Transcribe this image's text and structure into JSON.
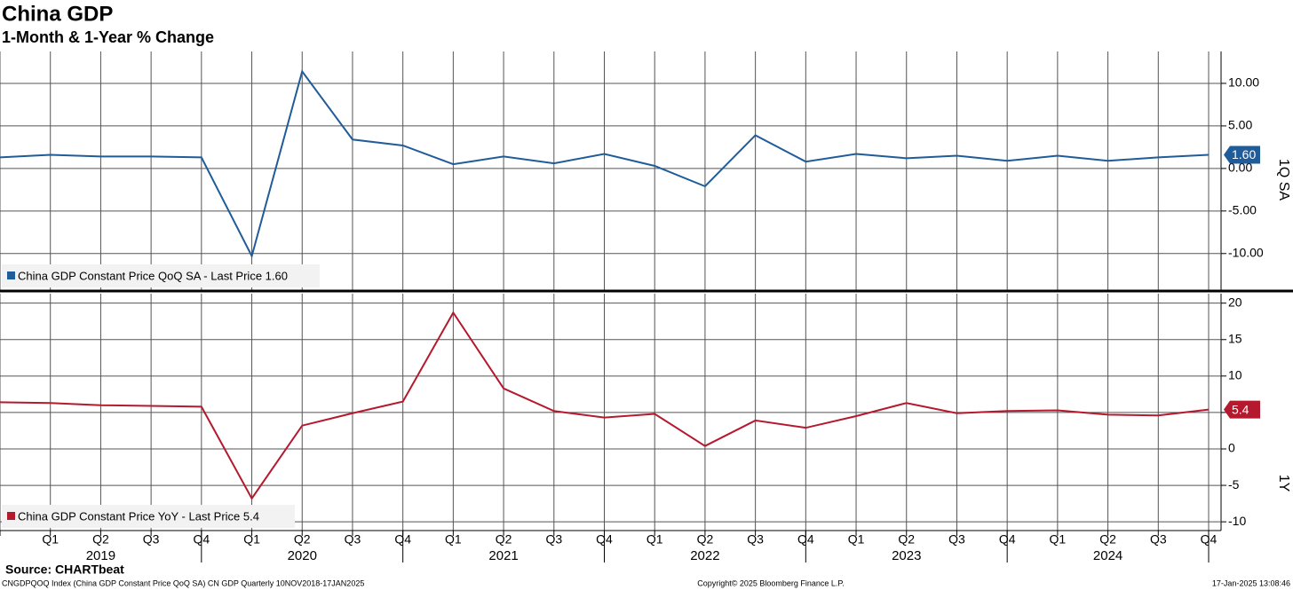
{
  "chart_data": [
    {
      "type": "line",
      "title": "China GDP",
      "subtitle": "1-Month & 1-Year % Change",
      "axis_label": "1Q SA",
      "categories": [
        null,
        "Q1",
        "Q2",
        "Q3",
        "Q4",
        "Q1",
        "Q2",
        "Q3",
        "Q4",
        "Q1",
        "Q2",
        "Q3",
        "Q4",
        "Q1",
        "Q2",
        "Q3",
        "Q4",
        "Q1",
        "Q2",
        "Q3",
        "Q4",
        "Q1",
        "Q2",
        "Q3",
        "Q4"
      ],
      "series": [
        {
          "name": "China GDP Constant Price QoQ SA - Last Price 1.60",
          "color": "#1f5c99",
          "last_label": "1.60",
          "values": [
            1.3,
            1.6,
            1.4,
            1.4,
            1.3,
            -10.3,
            11.4,
            3.4,
            2.7,
            0.5,
            1.4,
            0.6,
            1.7,
            0.3,
            -2.1,
            3.9,
            0.8,
            1.7,
            1.2,
            1.5,
            0.9,
            1.5,
            0.9,
            1.3,
            1.6
          ]
        }
      ],
      "ylim": [
        -14.3,
        13.75
      ],
      "yticks": [
        {
          "value": -10,
          "label": "-10.00"
        },
        {
          "value": -5,
          "label": "-5.00"
        },
        {
          "value": 0,
          "label": "0.00"
        },
        {
          "value": 5,
          "label": "5.00"
        },
        {
          "value": 10,
          "label": "10.00"
        }
      ],
      "grid": true
    },
    {
      "type": "line",
      "axis_label": "1Y",
      "categories": [
        null,
        "Q1",
        "Q2",
        "Q3",
        "Q4",
        "Q1",
        "Q2",
        "Q3",
        "Q4",
        "Q1",
        "Q2",
        "Q3",
        "Q4",
        "Q1",
        "Q2",
        "Q3",
        "Q4",
        "Q1",
        "Q2",
        "Q3",
        "Q4",
        "Q1",
        "Q2",
        "Q3",
        "Q4"
      ],
      "year_labels": [
        "2019",
        "2020",
        "2021",
        "2022",
        "2023",
        "2024"
      ],
      "series": [
        {
          "name": "China GDP Constant Price YoY - Last Price 5.4",
          "color": "#b5192e",
          "values": [
            6.4,
            6.3,
            6.0,
            5.9,
            5.8,
            -6.8,
            3.2,
            4.9,
            6.5,
            18.7,
            8.3,
            5.2,
            4.3,
            4.8,
            0.4,
            3.9,
            2.9,
            4.5,
            6.3,
            4.9,
            5.2,
            5.3,
            4.7,
            4.6,
            5.4
          ]
        }
      ],
      "ylim": [
        -11.2,
        21.3
      ],
      "yticks": [
        -10,
        -5,
        0,
        5,
        10,
        15,
        20
      ],
      "grid": true
    }
  ],
  "source": "Source: CHARTbeat",
  "footer": {
    "left": "CNGDPQOQ Index (China GDP Constant Price QoQ SA) CN GDP  Quarterly 10NOV2018-17JAN2025",
    "center": "Copyright© 2025 Bloomberg Finance L.P.",
    "right": "17-Jan-2025 13:08:46"
  }
}
